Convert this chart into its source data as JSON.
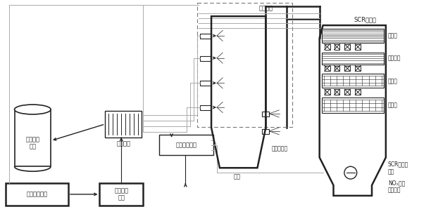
{
  "bg_color": "#ffffff",
  "lc": "#222222",
  "gc": "#aaaaaa",
  "labels": {
    "spray_module": "喷射模块",
    "scr_reactor": "SCR反应器",
    "flow_layer": "整流层",
    "blow_device": "吹灰装置",
    "spare_layer": "备用层",
    "catalyst": "催化剂",
    "scr_body": "SCR反应器\n本体",
    "nox_monitor": "NOₓ在线\n监测模块",
    "boiler_flue": "锅炉的烟道",
    "boiler": "锅炉",
    "prepare_module": "制备储存\n模块",
    "distribution": "分配模块",
    "auto_control": "自动控制模块",
    "transport": "输送循环模块",
    "measure": "计量稀释\n模块"
  },
  "figsize": [
    6.12,
    3.15
  ],
  "dpi": 100
}
